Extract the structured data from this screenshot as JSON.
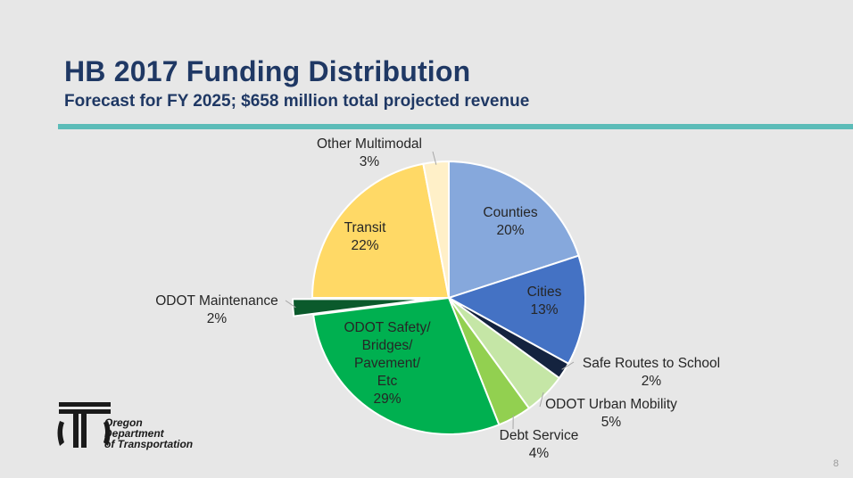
{
  "slide": {
    "title": "HB 2017 Funding Distribution",
    "subtitle": "Forecast for FY 2025; $658 million total projected revenue",
    "page_number": "8",
    "accent_color": "#5cbcb8"
  },
  "logo": {
    "lines": [
      "Oregon",
      "Department",
      "of Transportation"
    ]
  },
  "chart_data": {
    "type": "pie",
    "title": "HB 2017 Funding Distribution",
    "subtitle": "Forecast for FY 2025; $658 million total projected revenue",
    "slices": [
      {
        "label": "Counties",
        "value": 20,
        "display": "20%",
        "color": "#86a8dc",
        "label_inside": true,
        "exploded": false
      },
      {
        "label": "Cities",
        "value": 13,
        "display": "13%",
        "color": "#4472c4",
        "label_inside": true,
        "exploded": false
      },
      {
        "label": "Safe Routes to School",
        "value": 2,
        "display": "2%",
        "color": "#14233f",
        "label_inside": false,
        "exploded": false
      },
      {
        "label": "ODOT Urban Mobility",
        "value": 5,
        "display": "5%",
        "color": "#c5e6a6",
        "label_inside": false,
        "exploded": false
      },
      {
        "label": "Debt Service",
        "value": 4,
        "display": "4%",
        "color": "#92d050",
        "label_inside": false,
        "exploded": false
      },
      {
        "label": "ODOT Safety/Bridges/ Pavement/Etc",
        "value": 29,
        "display": "29%",
        "color": "#00b050",
        "label_inside": true,
        "exploded": false
      },
      {
        "label": "ODOT Maintenance",
        "value": 2,
        "display": "2%",
        "color": "#0b5a2c",
        "label_inside": false,
        "exploded": true
      },
      {
        "label": "Transit",
        "value": 22,
        "display": "22%",
        "color": "#ffd966",
        "label_inside": true,
        "exploded": false
      },
      {
        "label": "Other Multimodal",
        "value": 3,
        "display": "3%",
        "color": "#fff0c8",
        "label_inside": false,
        "exploded": false
      }
    ]
  }
}
